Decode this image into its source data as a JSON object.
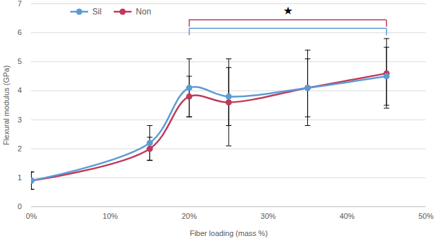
{
  "chart_data": {
    "type": "line",
    "x_label": "Fiber loading (mass %)",
    "y_label": "Flexural modulus (GPa)",
    "x": [
      0,
      15,
      20,
      25,
      35,
      45
    ],
    "series": [
      {
        "name": "Sil",
        "color": "#5b9bd5",
        "values": [
          0.9,
          2.2,
          4.1,
          3.8,
          4.1,
          4.5
        ],
        "errors": [
          0.3,
          0.6,
          1.0,
          1.0,
          1.3,
          1.0
        ]
      },
      {
        "name": "Non",
        "color": "#c0395a",
        "values": [
          0.9,
          2.0,
          3.8,
          3.6,
          4.1,
          4.6
        ],
        "errors": [
          0.3,
          0.4,
          0.7,
          1.5,
          1.0,
          1.2
        ]
      }
    ],
    "xlim": [
      0,
      50
    ],
    "xticks": [
      {
        "value": 0,
        "label": "0%"
      },
      {
        "value": 10,
        "label": "10%"
      },
      {
        "value": 20,
        "label": "20%"
      },
      {
        "value": 30,
        "label": "30%"
      },
      {
        "value": 40,
        "label": "40%"
      },
      {
        "value": 50,
        "label": "50%"
      }
    ],
    "ylim": [
      0,
      7
    ],
    "yticks": [
      0,
      1,
      2,
      3,
      4,
      5,
      6,
      7
    ],
    "grid": true,
    "legend": "top-left",
    "marker": "circle",
    "brackets": [
      {
        "series": "Non",
        "x1": 20,
        "x2": 45,
        "y": 6.45
      },
      {
        "series": "Sil",
        "x1": 20,
        "x2": 45,
        "y": 6.15
      }
    ],
    "annotations": [
      {
        "text": "★",
        "x": 32.5,
        "y": 6.75
      }
    ]
  }
}
